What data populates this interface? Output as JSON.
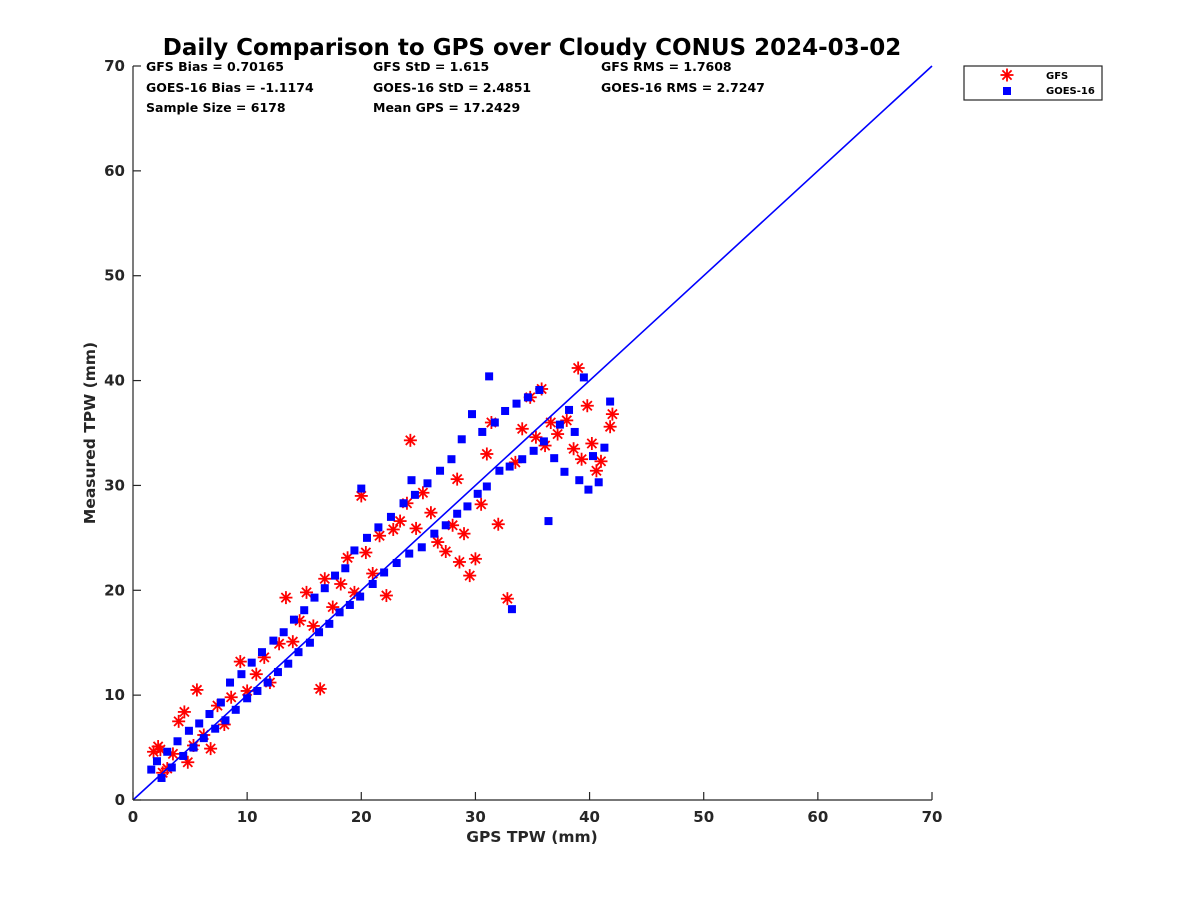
{
  "chart_data": {
    "type": "scatter",
    "title": "Daily Comparison to GPS over Cloudy CONUS 2024-03-02",
    "xlabel": "GPS TPW (mm)",
    "ylabel": "Measured TPW (mm)",
    "xlim": [
      0,
      70
    ],
    "ylim": [
      0,
      70
    ],
    "xticks": [
      "0",
      "10",
      "20",
      "30",
      "40",
      "50",
      "60",
      "70"
    ],
    "yticks": [
      "0",
      "10",
      "20",
      "30",
      "40",
      "50",
      "60",
      "70"
    ],
    "grid": false,
    "legend_position": "outside-top-right",
    "stats": [
      [
        "GFS Bias = 0.70165",
        "GFS StD = 1.615",
        "GFS RMS = 1.7608"
      ],
      [
        "GOES-16 Bias = -1.1174",
        "GOES-16 StD = 2.4851",
        "GOES-16 RMS = 2.7247"
      ],
      [
        "Sample Size = 6178",
        "Mean GPS = 17.2429"
      ]
    ],
    "series": [
      {
        "name": "GFS",
        "marker": "asterisk",
        "color": "#ff0000",
        "points": [
          [
            1.8,
            4.6
          ],
          [
            2.2,
            5.1
          ],
          [
            2.4,
            4.8
          ],
          [
            2.6,
            2.6
          ],
          [
            3.0,
            3.0
          ],
          [
            3.5,
            4.4
          ],
          [
            4.0,
            7.5
          ],
          [
            4.5,
            8.4
          ],
          [
            4.8,
            3.6
          ],
          [
            5.3,
            5.2
          ],
          [
            5.6,
            10.5
          ],
          [
            6.2,
            6.2
          ],
          [
            6.8,
            4.9
          ],
          [
            7.4,
            9.0
          ],
          [
            8.0,
            7.2
          ],
          [
            8.6,
            9.8
          ],
          [
            9.4,
            13.2
          ],
          [
            10.0,
            10.4
          ],
          [
            10.8,
            12.0
          ],
          [
            11.5,
            13.6
          ],
          [
            12.0,
            11.2
          ],
          [
            12.8,
            14.9
          ],
          [
            13.4,
            19.3
          ],
          [
            14.0,
            15.1
          ],
          [
            14.6,
            17.1
          ],
          [
            15.2,
            19.8
          ],
          [
            15.8,
            16.6
          ],
          [
            16.4,
            10.6
          ],
          [
            16.8,
            21.1
          ],
          [
            17.5,
            18.4
          ],
          [
            18.2,
            20.6
          ],
          [
            18.8,
            23.1
          ],
          [
            19.4,
            19.8
          ],
          [
            20.0,
            29.0
          ],
          [
            20.4,
            23.6
          ],
          [
            21.0,
            21.6
          ],
          [
            21.6,
            25.2
          ],
          [
            22.2,
            19.5
          ],
          [
            22.8,
            25.8
          ],
          [
            23.4,
            26.6
          ],
          [
            24.0,
            28.3
          ],
          [
            24.3,
            34.3
          ],
          [
            24.8,
            25.9
          ],
          [
            25.4,
            29.3
          ],
          [
            26.1,
            27.4
          ],
          [
            26.7,
            24.6
          ],
          [
            27.4,
            23.7
          ],
          [
            28.0,
            26.2
          ],
          [
            28.4,
            30.6
          ],
          [
            28.6,
            22.7
          ],
          [
            29.0,
            25.4
          ],
          [
            29.5,
            21.4
          ],
          [
            30.0,
            23.0
          ],
          [
            30.5,
            28.2
          ],
          [
            31.0,
            33.0
          ],
          [
            31.4,
            36.0
          ],
          [
            32.0,
            26.3
          ],
          [
            32.8,
            19.2
          ],
          [
            33.5,
            32.2
          ],
          [
            34.1,
            35.4
          ],
          [
            34.8,
            38.4
          ],
          [
            35.3,
            34.6
          ],
          [
            35.8,
            39.2
          ],
          [
            36.1,
            33.8
          ],
          [
            36.6,
            36.0
          ],
          [
            37.2,
            34.9
          ],
          [
            38.0,
            36.2
          ],
          [
            38.6,
            33.5
          ],
          [
            39.0,
            41.2
          ],
          [
            39.3,
            32.5
          ],
          [
            39.8,
            37.6
          ],
          [
            40.2,
            34.0
          ],
          [
            40.6,
            31.4
          ],
          [
            41.0,
            32.3
          ],
          [
            41.8,
            35.6
          ],
          [
            42.0,
            36.8
          ]
        ]
      },
      {
        "name": "GOES-16",
        "marker": "square",
        "color": "#0000ff",
        "points": [
          [
            1.6,
            2.9
          ],
          [
            2.1,
            3.7
          ],
          [
            2.5,
            2.1
          ],
          [
            3.0,
            4.6
          ],
          [
            3.4,
            3.1
          ],
          [
            3.9,
            5.6
          ],
          [
            4.4,
            4.2
          ],
          [
            4.9,
            6.6
          ],
          [
            5.3,
            5.0
          ],
          [
            5.8,
            7.3
          ],
          [
            6.2,
            5.9
          ],
          [
            6.7,
            8.2
          ],
          [
            7.2,
            6.8
          ],
          [
            7.7,
            9.3
          ],
          [
            8.1,
            7.6
          ],
          [
            8.5,
            11.2
          ],
          [
            9.0,
            8.6
          ],
          [
            9.5,
            12.0
          ],
          [
            10.0,
            9.7
          ],
          [
            10.4,
            13.1
          ],
          [
            10.9,
            10.4
          ],
          [
            11.3,
            14.1
          ],
          [
            11.8,
            11.2
          ],
          [
            12.3,
            15.2
          ],
          [
            12.7,
            12.2
          ],
          [
            13.2,
            16.0
          ],
          [
            13.6,
            13.0
          ],
          [
            14.1,
            17.2
          ],
          [
            14.5,
            14.1
          ],
          [
            15.0,
            18.1
          ],
          [
            15.5,
            15.0
          ],
          [
            15.9,
            19.3
          ],
          [
            16.3,
            16.0
          ],
          [
            16.8,
            20.2
          ],
          [
            17.2,
            16.8
          ],
          [
            17.7,
            21.4
          ],
          [
            18.1,
            17.9
          ],
          [
            18.6,
            22.1
          ],
          [
            19.0,
            18.6
          ],
          [
            19.4,
            23.8
          ],
          [
            19.9,
            19.4
          ],
          [
            20.0,
            29.7
          ],
          [
            20.5,
            25.0
          ],
          [
            21.0,
            20.6
          ],
          [
            21.5,
            26.0
          ],
          [
            22.0,
            21.7
          ],
          [
            22.6,
            27.0
          ],
          [
            23.1,
            22.6
          ],
          [
            23.7,
            28.3
          ],
          [
            24.2,
            23.5
          ],
          [
            24.4,
            30.5
          ],
          [
            24.7,
            29.1
          ],
          [
            25.3,
            24.1
          ],
          [
            25.8,
            30.2
          ],
          [
            26.4,
            25.4
          ],
          [
            26.9,
            31.4
          ],
          [
            27.4,
            26.2
          ],
          [
            27.9,
            32.5
          ],
          [
            28.4,
            27.3
          ],
          [
            28.8,
            34.4
          ],
          [
            29.3,
            28.0
          ],
          [
            29.7,
            36.8
          ],
          [
            30.2,
            29.2
          ],
          [
            30.6,
            35.1
          ],
          [
            31.0,
            29.9
          ],
          [
            31.2,
            40.4
          ],
          [
            31.7,
            36.0
          ],
          [
            32.1,
            31.4
          ],
          [
            32.6,
            37.1
          ],
          [
            33.0,
            31.8
          ],
          [
            33.2,
            18.2
          ],
          [
            33.6,
            37.8
          ],
          [
            34.1,
            32.5
          ],
          [
            34.6,
            38.4
          ],
          [
            35.1,
            33.3
          ],
          [
            35.6,
            39.1
          ],
          [
            36.0,
            34.2
          ],
          [
            36.4,
            26.6
          ],
          [
            36.9,
            32.6
          ],
          [
            37.4,
            35.8
          ],
          [
            37.8,
            31.3
          ],
          [
            38.2,
            37.2
          ],
          [
            38.7,
            35.1
          ],
          [
            39.1,
            30.5
          ],
          [
            39.5,
            40.3
          ],
          [
            39.9,
            29.6
          ],
          [
            40.3,
            32.8
          ],
          [
            40.8,
            30.3
          ],
          [
            41.3,
            33.6
          ],
          [
            41.8,
            38.0
          ]
        ]
      }
    ],
    "reference_line": {
      "from": [
        0,
        0
      ],
      "to": [
        70,
        70
      ],
      "color": "#0000ff"
    }
  }
}
